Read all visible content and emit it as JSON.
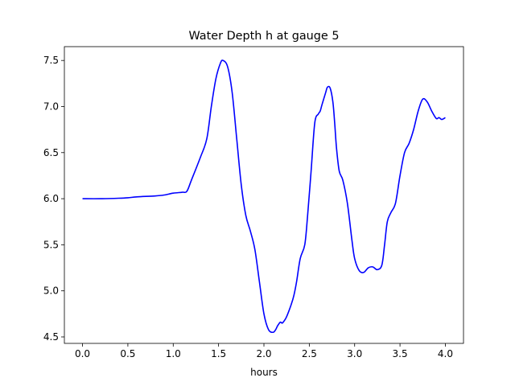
{
  "chart_data": {
    "type": "line",
    "title": "Water Depth h at gauge 5",
    "xlabel": "hours",
    "ylabel": "",
    "xlim": [
      -0.2,
      4.2
    ],
    "ylim": [
      4.43,
      7.65
    ],
    "x_ticks": [
      "0.0",
      "0.5",
      "1.0",
      "1.5",
      "2.0",
      "2.5",
      "3.0",
      "3.5",
      "4.0"
    ],
    "y_ticks": [
      "4.5",
      "5.0",
      "5.5",
      "6.0",
      "6.5",
      "7.0",
      "7.5"
    ],
    "grid": false,
    "legend": "none",
    "series": [
      {
        "color": "#0000ff",
        "x": [
          0.0,
          0.2,
          0.4,
          0.5,
          0.6,
          0.8,
          0.9,
          1.0,
          1.1,
          1.15,
          1.2,
          1.3,
          1.37,
          1.42,
          1.47,
          1.52,
          1.55,
          1.6,
          1.65,
          1.7,
          1.75,
          1.8,
          1.85,
          1.9,
          1.95,
          2.0,
          2.05,
          2.1,
          2.13,
          2.15,
          2.18,
          2.2,
          2.22,
          2.25,
          2.3,
          2.33,
          2.36,
          2.4,
          2.45,
          2.48,
          2.52,
          2.56,
          2.6,
          2.62,
          2.64,
          2.68,
          2.7,
          2.73,
          2.76,
          2.78,
          2.8,
          2.83,
          2.87,
          2.92,
          2.97,
          3.0,
          3.05,
          3.1,
          3.15,
          3.2,
          3.25,
          3.3,
          3.33,
          3.36,
          3.4,
          3.45,
          3.5,
          3.55,
          3.6,
          3.65,
          3.7,
          3.75,
          3.8,
          3.85,
          3.9,
          3.93,
          3.96,
          4.0
        ],
        "y": [
          6.0,
          6.0,
          6.005,
          6.01,
          6.02,
          6.03,
          6.04,
          6.06,
          6.07,
          6.08,
          6.2,
          6.45,
          6.65,
          7.0,
          7.3,
          7.47,
          7.5,
          7.43,
          7.15,
          6.65,
          6.15,
          5.82,
          5.65,
          5.45,
          5.1,
          4.75,
          4.58,
          4.55,
          4.58,
          4.62,
          4.66,
          4.65,
          4.67,
          4.72,
          4.85,
          4.95,
          5.1,
          5.35,
          5.5,
          5.8,
          6.3,
          6.82,
          6.92,
          6.95,
          7.02,
          7.15,
          7.21,
          7.2,
          7.05,
          6.82,
          6.55,
          6.3,
          6.2,
          5.95,
          5.55,
          5.35,
          5.22,
          5.2,
          5.25,
          5.26,
          5.23,
          5.28,
          5.5,
          5.75,
          5.85,
          5.95,
          6.25,
          6.5,
          6.6,
          6.75,
          6.95,
          7.08,
          7.05,
          6.95,
          6.87,
          6.88,
          6.86,
          6.88
        ]
      }
    ]
  }
}
